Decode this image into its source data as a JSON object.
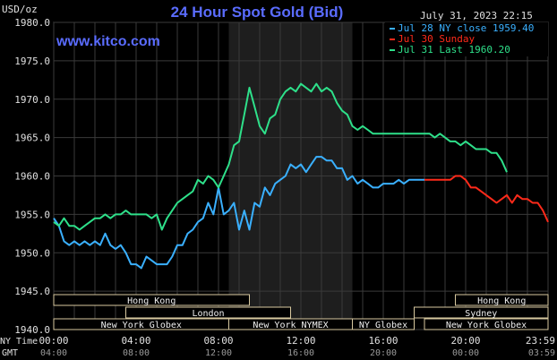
{
  "chart_data": {
    "type": "line",
    "title": "24 Hour Spot Gold (Bid)",
    "source": "www.kitco.com",
    "timestamp": "July 31, 2023 22:15",
    "ylabel": "USD/oz",
    "ylim": [
      1940.0,
      1980.0
    ],
    "yticks": [
      "1940.0",
      "1945.0",
      "1950.0",
      "1955.0",
      "1960.0",
      "1965.0",
      "1970.0",
      "1975.0",
      "1980.0"
    ],
    "xlim": [
      0,
      24
    ],
    "xticks_ny": [
      "00:00",
      "04:00",
      "08:00",
      "12:00",
      "16:00",
      "20:00",
      "23:59"
    ],
    "xticks_gmt": [
      "04:00",
      "08:00",
      "12:00",
      "16:00",
      "20:00",
      "00:00",
      "03:59"
    ],
    "xlabel_ny": "NY Time",
    "xlabel_gmt": "GMT",
    "grid": true,
    "shaded_region": [
      8.5,
      14.5
    ],
    "legend_position": "top-right",
    "series": [
      {
        "name": "Jul 28 NY close 1959.40",
        "color": "#3ab0ff",
        "x": [
          0,
          0.25,
          0.5,
          0.75,
          1.0,
          1.25,
          1.5,
          1.75,
          2.0,
          2.25,
          2.5,
          2.75,
          3.0,
          3.25,
          3.5,
          3.75,
          4.0,
          4.25,
          4.5,
          4.75,
          5.0,
          5.25,
          5.5,
          5.75,
          6.0,
          6.25,
          6.5,
          6.75,
          7.0,
          7.25,
          7.5,
          7.75,
          8.0,
          8.25,
          8.5,
          8.75,
          9.0,
          9.25,
          9.5,
          9.75,
          10.0,
          10.25,
          10.5,
          10.75,
          11.0,
          11.25,
          11.5,
          11.75,
          12.0,
          12.25,
          12.5,
          12.75,
          13.0,
          13.25,
          13.5,
          13.75,
          14.0,
          14.25,
          14.5,
          14.75,
          15.0,
          15.25,
          15.5,
          15.75,
          16.0,
          16.25,
          16.5,
          16.75,
          17.0,
          17.25,
          17.5,
          17.75,
          18.0
        ],
        "values": [
          1954.5,
          1953.5,
          1951.5,
          1951.0,
          1951.5,
          1951.0,
          1951.5,
          1951.0,
          1951.5,
          1951.0,
          1952.5,
          1951.0,
          1950.5,
          1951.0,
          1950.0,
          1948.5,
          1948.5,
          1948.0,
          1949.5,
          1949.0,
          1948.5,
          1948.5,
          1948.5,
          1949.5,
          1951.0,
          1951.0,
          1952.5,
          1953.0,
          1954.0,
          1954.5,
          1956.5,
          1955.0,
          1958.5,
          1955.0,
          1955.5,
          1956.5,
          1953.0,
          1955.5,
          1953.0,
          1956.5,
          1956.0,
          1958.5,
          1957.5,
          1959.0,
          1959.5,
          1960.0,
          1961.5,
          1961.0,
          1961.5,
          1960.5,
          1961.5,
          1962.5,
          1962.5,
          1962.0,
          1962.0,
          1961.0,
          1961.0,
          1959.5,
          1960.0,
          1959.0,
          1959.5,
          1959.0,
          1958.5,
          1958.5,
          1959.0,
          1959.0,
          1959.0,
          1959.5,
          1959.0,
          1959.5,
          1959.5,
          1959.5,
          1959.5
        ]
      },
      {
        "name": "Jul 30 Sunday",
        "color": "#ff2a1a",
        "x": [
          18.0,
          18.25,
          18.5,
          18.75,
          19.0,
          19.25,
          19.5,
          19.75,
          20.0,
          20.25,
          20.5,
          20.75,
          21.0,
          21.25,
          21.5,
          21.75,
          22.0,
          22.25,
          22.5,
          22.75,
          23.0,
          23.25,
          23.5,
          23.75,
          24.0
        ],
        "values": [
          1959.5,
          1959.5,
          1959.5,
          1959.5,
          1959.5,
          1959.5,
          1960.0,
          1960.0,
          1959.5,
          1958.5,
          1958.5,
          1958.0,
          1957.5,
          1957.0,
          1956.5,
          1957.0,
          1957.5,
          1956.5,
          1957.5,
          1957.0,
          1957.0,
          1956.5,
          1956.5,
          1955.5,
          1954.0
        ]
      },
      {
        "name": "Jul 31 Last 1960.20",
        "color": "#2ee08a",
        "x": [
          0,
          0.25,
          0.5,
          0.75,
          1.0,
          1.25,
          1.5,
          1.75,
          2.0,
          2.25,
          2.5,
          2.75,
          3.0,
          3.25,
          3.5,
          3.75,
          4.0,
          4.25,
          4.5,
          4.75,
          5.0,
          5.25,
          5.5,
          5.75,
          6.0,
          6.25,
          6.5,
          6.75,
          7.0,
          7.25,
          7.5,
          7.75,
          8.0,
          8.25,
          8.5,
          8.75,
          9.0,
          9.25,
          9.5,
          9.75,
          10.0,
          10.25,
          10.5,
          10.75,
          11.0,
          11.25,
          11.5,
          11.75,
          12.0,
          12.25,
          12.5,
          12.75,
          13.0,
          13.25,
          13.5,
          13.75,
          14.0,
          14.25,
          14.5,
          14.75,
          15.0,
          15.25,
          15.5,
          15.75,
          16.0,
          16.25,
          16.5,
          16.75,
          17.0,
          17.25,
          17.5,
          17.75,
          18.0,
          18.25,
          18.5,
          18.75,
          19.0,
          19.25,
          19.5,
          19.75,
          20.0,
          20.25,
          20.5,
          20.75,
          21.0,
          21.25,
          21.5,
          21.75,
          22.0
        ],
        "values": [
          1954.0,
          1953.5,
          1954.5,
          1953.5,
          1953.5,
          1953.0,
          1953.5,
          1954.0,
          1954.5,
          1954.5,
          1955.0,
          1954.5,
          1955.0,
          1955.0,
          1955.5,
          1955.0,
          1955.0,
          1955.0,
          1955.0,
          1954.5,
          1955.0,
          1953.0,
          1954.5,
          1955.5,
          1956.5,
          1957.0,
          1957.5,
          1958.0,
          1959.5,
          1959.0,
          1960.0,
          1959.5,
          1958.5,
          1960.0,
          1961.5,
          1964.0,
          1964.5,
          1968.0,
          1971.5,
          1969.0,
          1966.5,
          1965.5,
          1967.5,
          1968.0,
          1970.0,
          1971.0,
          1971.5,
          1971.0,
          1972.0,
          1971.5,
          1971.0,
          1972.0,
          1971.0,
          1971.5,
          1971.0,
          1969.5,
          1968.5,
          1968.0,
          1966.5,
          1966.0,
          1966.5,
          1966.0,
          1965.5,
          1965.5,
          1965.5,
          1965.5,
          1965.5,
          1965.5,
          1965.5,
          1965.5,
          1965.5,
          1965.5,
          1965.5,
          1965.5,
          1965.0,
          1965.5,
          1965.0,
          1964.5,
          1964.5,
          1964.0,
          1964.5,
          1964.0,
          1963.5,
          1963.5,
          1963.5,
          1963.0,
          1963.0,
          1962.0,
          1960.5
        ]
      }
    ],
    "sessions": [
      {
        "label": "Hong Kong",
        "start": 0,
        "end": 9.5,
        "row": 0
      },
      {
        "label": "Hong Kong",
        "start": 19.5,
        "end": 24,
        "row": 0
      },
      {
        "label": "London",
        "start": 3.5,
        "end": 11.5,
        "row": 1
      },
      {
        "label": "Sydney",
        "start": 17.5,
        "end": 24,
        "row": 1
      },
      {
        "label": "New York Globex",
        "start": 0,
        "end": 8.5,
        "row": 2
      },
      {
        "label": "New York NYMEX",
        "start": 8.5,
        "end": 14.5,
        "row": 2
      },
      {
        "label": "NY Globex",
        "start": 14.5,
        "end": 17.5,
        "row": 2
      },
      {
        "label": "New York Globex",
        "start": 18.0,
        "end": 24,
        "row": 2
      }
    ]
  },
  "colors": {
    "background": "#000000",
    "plot_background": "#000000",
    "shaded": "#1e1e1e",
    "grid": "#3a3a3a",
    "axis_text": "#e0e0e0",
    "title": "#5a6cff",
    "watermark": "#5a6cff",
    "session_border": "#d8c9a0",
    "session_text": "#f0f0f0"
  }
}
